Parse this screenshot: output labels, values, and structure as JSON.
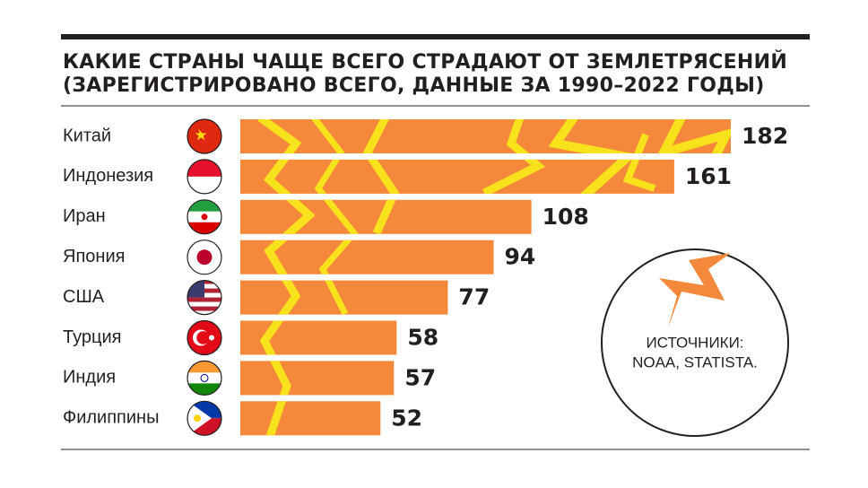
{
  "chart_data": {
    "type": "bar",
    "orientation": "horizontal",
    "title": [
      "КАКИЕ СТРАНЫ ЧАЩЕ ВСЕГО СТРАДАЮТ ОТ ЗЕМЛЕТРЯСЕНИЙ",
      "(ЗАРЕГИСТРИРОВАНО ВСЕГО, ДАННЫЕ ЗА 1990–2022 ГОДЫ)"
    ],
    "categories": [
      "Китай",
      "Индонезия",
      "Иран",
      "Япония",
      "США",
      "Турция",
      "Индия",
      "Филиппины"
    ],
    "values": [
      182,
      161,
      108,
      94,
      77,
      58,
      57,
      52
    ],
    "color": "#f5883a",
    "source": [
      "ИСТОЧНИКИ:",
      "NOAA, STATISTA."
    ]
  }
}
